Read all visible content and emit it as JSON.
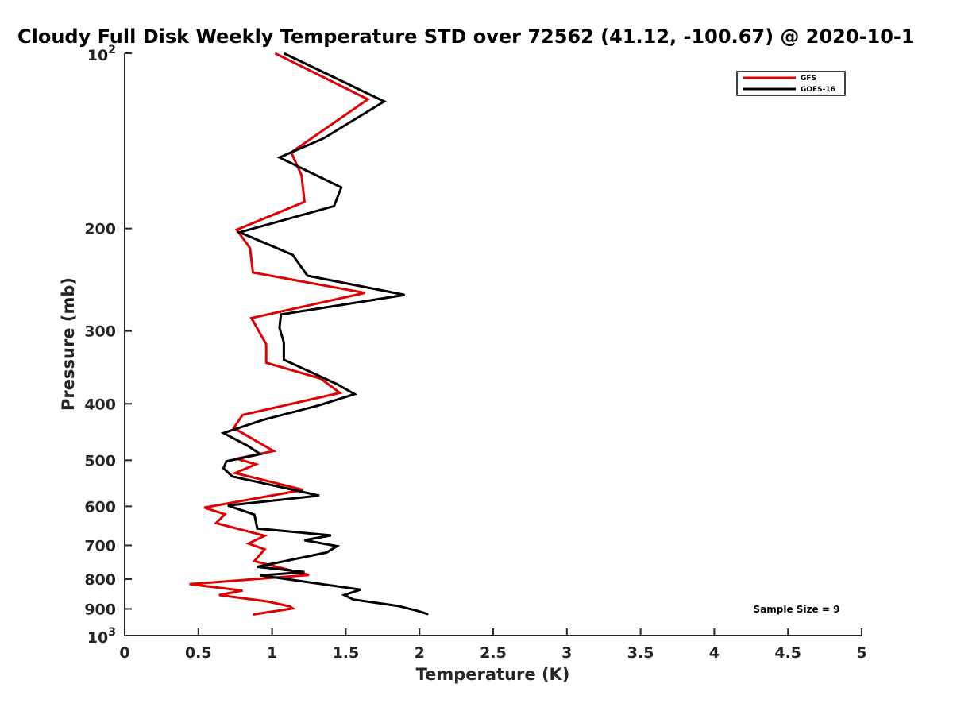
{
  "chart_data": {
    "type": "line",
    "title": "Cloudy Full Disk Weekly Temperature STD over 72562 (41.12, -100.67) @ 2020-10-1",
    "xlabel": "Temperature (K)",
    "ylabel": "Pressure (mb)",
    "xlim": [
      0,
      5
    ],
    "ylim": [
      100,
      1000
    ],
    "y_scale": "log",
    "y_reversed": true,
    "x_ticks": [
      {
        "value": 0,
        "label": "0"
      },
      {
        "value": 0.5,
        "label": "0.5"
      },
      {
        "value": 1,
        "label": "1"
      },
      {
        "value": 1.5,
        "label": "1.5"
      },
      {
        "value": 2,
        "label": "2"
      },
      {
        "value": 2.5,
        "label": "2.5"
      },
      {
        "value": 3,
        "label": "3"
      },
      {
        "value": 3.5,
        "label": "3.5"
      },
      {
        "value": 4,
        "label": "4"
      },
      {
        "value": 4.5,
        "label": "4.5"
      },
      {
        "value": 5,
        "label": "5"
      }
    ],
    "y_ticks": [
      {
        "value": 100,
        "base": "10",
        "exp": "2"
      },
      {
        "value": 200,
        "label": "200"
      },
      {
        "value": 300,
        "label": "300"
      },
      {
        "value": 400,
        "label": "400"
      },
      {
        "value": 500,
        "label": "500"
      },
      {
        "value": 600,
        "label": "600"
      },
      {
        "value": 700,
        "label": "700"
      },
      {
        "value": 800,
        "label": "800"
      },
      {
        "value": 900,
        "label": "900"
      },
      {
        "value": 1000,
        "base": "10",
        "exp": "3"
      }
    ],
    "grid": false,
    "legend_position": "top-right",
    "annotation": "Sample Size = 9",
    "series": [
      {
        "name": "GFS",
        "color": "#e00000",
        "points": [
          [
            1.02,
            100
          ],
          [
            1.65,
            120
          ],
          [
            1.13,
            148
          ],
          [
            1.2,
            162
          ],
          [
            1.22,
            180
          ],
          [
            0.76,
            201
          ],
          [
            0.85,
            216
          ],
          [
            0.87,
            238
          ],
          [
            1.63,
            258
          ],
          [
            0.86,
            285
          ],
          [
            0.96,
            316
          ],
          [
            0.96,
            340
          ],
          [
            1.33,
            362
          ],
          [
            1.46,
            383
          ],
          [
            0.8,
            418
          ],
          [
            0.74,
            440
          ],
          [
            1.01,
            482
          ],
          [
            0.76,
            497
          ],
          [
            0.89,
            508
          ],
          [
            0.75,
            526
          ],
          [
            1.21,
            562
          ],
          [
            0.54,
            603
          ],
          [
            0.68,
            619
          ],
          [
            0.62,
            641
          ],
          [
            0.95,
            674
          ],
          [
            0.84,
            695
          ],
          [
            0.95,
            711
          ],
          [
            0.88,
            745
          ],
          [
            1.25,
            787
          ],
          [
            0.44,
            816
          ],
          [
            0.8,
            837
          ],
          [
            0.64,
            852
          ],
          [
            0.97,
            874
          ],
          [
            1.12,
            891
          ],
          [
            1.14,
            898
          ],
          [
            0.87,
            920
          ]
        ]
      },
      {
        "name": "GOES-16",
        "color": "#000000",
        "points": [
          [
            1.08,
            100
          ],
          [
            1.76,
            121
          ],
          [
            1.35,
            140
          ],
          [
            1.05,
            151
          ],
          [
            1.47,
            170
          ],
          [
            1.42,
            183
          ],
          [
            0.78,
            203
          ],
          [
            1.14,
            222
          ],
          [
            1.24,
            241
          ],
          [
            1.9,
            260
          ],
          [
            1.06,
            281
          ],
          [
            1.05,
            296
          ],
          [
            1.08,
            314
          ],
          [
            1.08,
            336
          ],
          [
            1.44,
            370
          ],
          [
            1.56,
            385
          ],
          [
            1.31,
            403
          ],
          [
            0.94,
            426
          ],
          [
            0.67,
            449
          ],
          [
            0.84,
            473
          ],
          [
            0.92,
            488
          ],
          [
            0.69,
            502
          ],
          [
            0.67,
            516
          ],
          [
            0.73,
            533
          ],
          [
            1.32,
            575
          ],
          [
            0.7,
            598
          ],
          [
            0.88,
            620
          ],
          [
            0.9,
            655
          ],
          [
            1.4,
            673
          ],
          [
            1.22,
            686
          ],
          [
            1.44,
            702
          ],
          [
            1.37,
            720
          ],
          [
            0.9,
            762
          ],
          [
            1.22,
            778
          ],
          [
            0.92,
            788
          ],
          [
            1.6,
            834
          ],
          [
            1.49,
            852
          ],
          [
            1.55,
            867
          ],
          [
            1.86,
            890
          ],
          [
            1.98,
            906
          ],
          [
            2.06,
            919
          ]
        ]
      }
    ]
  }
}
